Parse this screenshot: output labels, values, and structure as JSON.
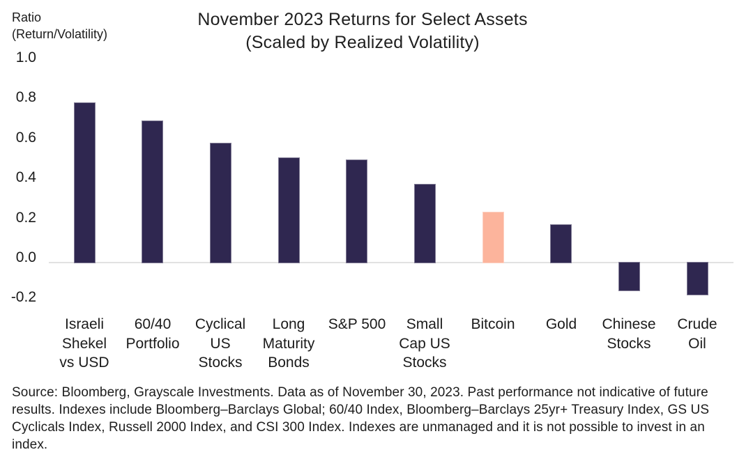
{
  "axis": {
    "unit_label": "Ratio\n(Return/Volatility)"
  },
  "title": {
    "line1": "November 2023 Returns for Select Assets",
    "line2": "(Scaled by Realized Volatility)"
  },
  "chart_data": {
    "type": "bar",
    "title": "November 2023 Returns for Select Assets (Scaled by Realized Volatility)",
    "ylabel": "Ratio (Return/Volatility)",
    "xlabel": "",
    "ylim": [
      -0.2,
      1.0
    ],
    "ytick_values": [
      1.0,
      0.8,
      0.6,
      0.4,
      0.2,
      0.0,
      -0.2
    ],
    "ytick_labels": [
      "1.0",
      "0.8",
      "0.6",
      "0.4",
      "0.2",
      "0.0",
      "-0.2"
    ],
    "grid": "zero-baseline-only",
    "legend": "none",
    "categories": [
      "Israeli Shekel vs USD",
      "60/40 Portfolio",
      "Cyclical US Stocks",
      "Long Maturity Bonds",
      "S&P 500",
      "Small Cap US Stocks",
      "Bitcoin",
      "Gold",
      "Chinese Stocks",
      "Crude Oil"
    ],
    "category_display_lines": [
      "Israeli\nShekel\nvs USD",
      "60/40\nPortfolio",
      "Cyclical\nUS\nStocks",
      "Long\nMaturity\nBonds",
      "S&P 500",
      "Small\nCap US\nStocks",
      "Bitcoin",
      "Gold",
      "Chinese\nStocks",
      "Crude\nOil"
    ],
    "values": [
      0.79,
      0.7,
      0.59,
      0.52,
      0.51,
      0.39,
      0.25,
      0.19,
      -0.14,
      -0.16
    ],
    "highlight_category": "Bitcoin",
    "highlight_index": 6,
    "colors": {
      "bar_default": "#2f2750",
      "bar_highlight": "#fcb49c",
      "zero_line": "#e2e2e2",
      "text": "#1b1b1b"
    }
  },
  "footer": {
    "source_text": "Source: Bloomberg, Grayscale Investments. Data as of November 30, 2023. Past performance not indicative of future results. Indexes include Bloomberg–Barclays Global; 60/40 Index, Bloomberg–Barclays 25yr+ Treasury Index, GS US Cyclicals Index, Russell 2000 Index, and CSI 300 Index. Indexes are unmanaged and it is not possible to invest in an index."
  }
}
